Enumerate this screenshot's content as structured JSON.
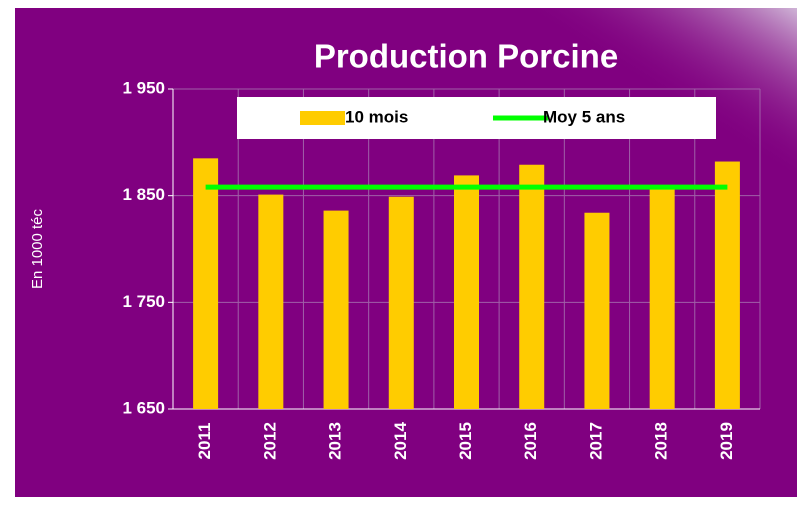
{
  "chart_data": {
    "type": "bar",
    "title": "Production Porcine",
    "y_label": "En 1000 téc",
    "categories": [
      "2011",
      "2012",
      "2013",
      "2014",
      "2015",
      "2016",
      "2017",
      "2018",
      "2019"
    ],
    "series": [
      {
        "name": "10 mois",
        "type": "bar",
        "color": "#ffcc00",
        "values": [
          1885,
          1851,
          1836,
          1849,
          1869,
          1879,
          1834,
          1859,
          1882
        ]
      },
      {
        "name": "Moy 5 ans",
        "type": "line",
        "color": "#00ff00",
        "values": [
          1858,
          1858,
          1858,
          1858,
          1858,
          1858,
          1858,
          1858,
          1858
        ]
      }
    ],
    "ylim": [
      1650,
      1950
    ],
    "yticks": [
      {
        "value": 1650,
        "label": "1 650"
      },
      {
        "value": 1750,
        "label": "1 750"
      },
      {
        "value": 1850,
        "label": "1 850"
      },
      {
        "value": 1950,
        "label": "1 950"
      }
    ],
    "grid": true,
    "legend": "top"
  }
}
